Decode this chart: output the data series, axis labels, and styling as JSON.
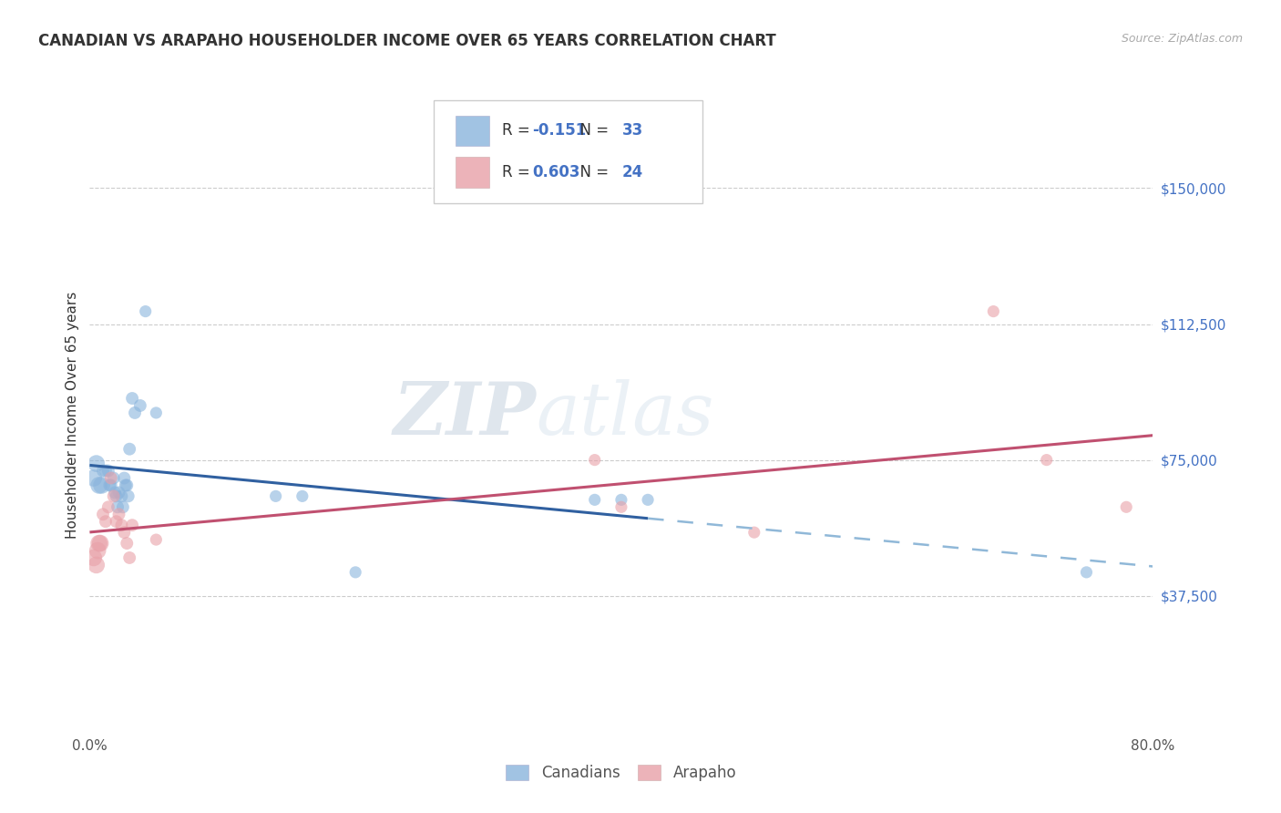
{
  "title": "CANADIAN VS ARAPAHO HOUSEHOLDER INCOME OVER 65 YEARS CORRELATION CHART",
  "source": "Source: ZipAtlas.com",
  "ylabel": "Householder Income Over 65 years",
  "xlim": [
    0,
    0.8
  ],
  "ylim": [
    0,
    175000
  ],
  "yticks": [
    37500,
    75000,
    112500,
    150000
  ],
  "ytick_labels": [
    "$37,500",
    "$75,000",
    "$112,500",
    "$150,000"
  ],
  "xticks": [
    0.0,
    0.1,
    0.2,
    0.3,
    0.4,
    0.5,
    0.6,
    0.7,
    0.8
  ],
  "xtick_labels": [
    "0.0%",
    "",
    "",
    "",
    "",
    "",
    "",
    "",
    "80.0%"
  ],
  "canadian_R": -0.151,
  "canadian_N": 33,
  "arapaho_R": 0.603,
  "arapaho_N": 24,
  "canadian_color": "#8ab4dc",
  "arapaho_color": "#e8a0a8",
  "canadian_line_color": "#3060a0",
  "arapaho_line_color": "#c05070",
  "canadian_dashed_color": "#90b8d8",
  "watermark_zip": "ZIP",
  "watermark_atlas": "atlas",
  "background_color": "#ffffff",
  "canadian_x": [
    0.003,
    0.005,
    0.007,
    0.009,
    0.01,
    0.012,
    0.014,
    0.015,
    0.016,
    0.018,
    0.019,
    0.02,
    0.021,
    0.022,
    0.024,
    0.025,
    0.026,
    0.027,
    0.028,
    0.029,
    0.03,
    0.032,
    0.034,
    0.038,
    0.042,
    0.05,
    0.14,
    0.16,
    0.2,
    0.38,
    0.4,
    0.42,
    0.75
  ],
  "canadian_y": [
    70000,
    74000,
    68000,
    68000,
    72000,
    72000,
    72000,
    68000,
    68000,
    70000,
    66000,
    65000,
    62000,
    66000,
    65000,
    62000,
    70000,
    68000,
    68000,
    65000,
    78000,
    92000,
    88000,
    90000,
    116000,
    88000,
    65000,
    65000,
    44000,
    64000,
    64000,
    64000,
    44000
  ],
  "arapaho_x": [
    0.003,
    0.005,
    0.006,
    0.007,
    0.008,
    0.01,
    0.012,
    0.014,
    0.016,
    0.018,
    0.02,
    0.022,
    0.024,
    0.026,
    0.028,
    0.03,
    0.032,
    0.05,
    0.38,
    0.4,
    0.5,
    0.68,
    0.72,
    0.78
  ],
  "arapaho_y": [
    48000,
    46000,
    50000,
    52000,
    52000,
    60000,
    58000,
    62000,
    70000,
    65000,
    58000,
    60000,
    57000,
    55000,
    52000,
    48000,
    57000,
    53000,
    75000,
    62000,
    55000,
    116000,
    75000,
    62000
  ]
}
